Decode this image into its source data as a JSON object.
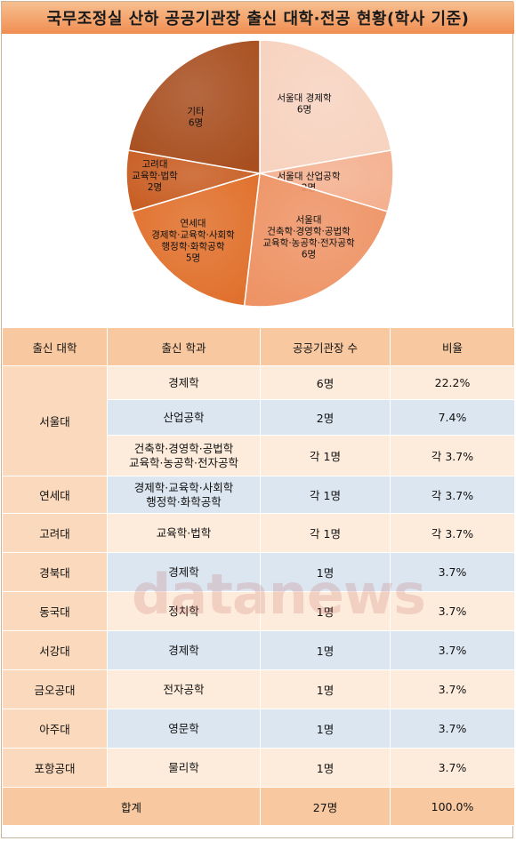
{
  "title": "국무조정실 산하 공공기관장 출신 대학·전공 현황(학사 기준)",
  "chart_data": {
    "type": "pie",
    "title": "국무조정실 산하 공공기관장 출신 대학·전공 현황(학사 기준)",
    "slices": [
      {
        "lines": [
          "서울대 경제학",
          "6명"
        ],
        "value": 6,
        "color": "#f7d2bf"
      },
      {
        "lines": [
          "서울대 산업공학",
          "2명"
        ],
        "value": 2,
        "color": "#f4b08f"
      },
      {
        "lines": [
          "서울대",
          "건축학·경영학·공법학",
          "교육학·농공학·전자공학",
          "6명"
        ],
        "value": 6,
        "color": "#ee9365"
      },
      {
        "lines": [
          "연세대",
          "경제학·교육학·사회학",
          "행정학·화학공학",
          "5명"
        ],
        "value": 5,
        "color": "#e06f2a"
      },
      {
        "lines": [
          "고려대",
          "교육학·법학",
          "2명"
        ],
        "value": 2,
        "color": "#c85d22"
      },
      {
        "lines": [
          "기타",
          "6명"
        ],
        "value": 6,
        "color": "#a84e1f"
      }
    ]
  },
  "table": {
    "headers": [
      "출신 대학",
      "출신 학과",
      "공공기관장 수",
      "비율"
    ],
    "rows": [
      {
        "univ": "서울대",
        "dept": "경제학",
        "count": "6명",
        "ratio": "22.2%"
      },
      {
        "univ": "",
        "dept": "산업공학",
        "count": "2명",
        "ratio": "7.4%"
      },
      {
        "univ": "",
        "dept": "건축학·경영학·공법학\n교육학·농공학·전자공학",
        "count": "각 1명",
        "ratio": "각 3.7%"
      },
      {
        "univ": "연세대",
        "dept": "경제학·교육학·사회학\n행정학·화학공학",
        "count": "각 1명",
        "ratio": "각 3.7%"
      },
      {
        "univ": "고려대",
        "dept": "교육학·법학",
        "count": "각 1명",
        "ratio": "각 3.7%"
      },
      {
        "univ": "경북대",
        "dept": "경제학",
        "count": "1명",
        "ratio": "3.7%"
      },
      {
        "univ": "동국대",
        "dept": "정치학",
        "count": "1명",
        "ratio": "3.7%"
      },
      {
        "univ": "서강대",
        "dept": "경제학",
        "count": "1명",
        "ratio": "3.7%"
      },
      {
        "univ": "금오공대",
        "dept": "전자공학",
        "count": "1명",
        "ratio": "3.7%"
      },
      {
        "univ": "아주대",
        "dept": "영문학",
        "count": "1명",
        "ratio": "3.7%"
      },
      {
        "univ": "포항공대",
        "dept": "물리학",
        "count": "1명",
        "ratio": "3.7%"
      }
    ],
    "total": {
      "label": "합계",
      "count": "27명",
      "ratio": "100.0%"
    }
  },
  "watermark": "datanews"
}
